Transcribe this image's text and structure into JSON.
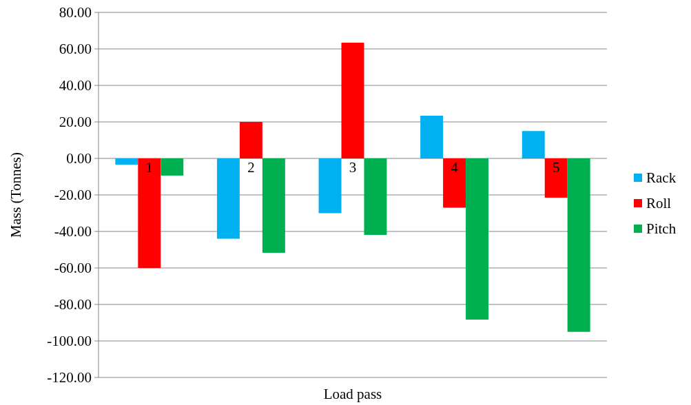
{
  "chart_data": {
    "type": "bar",
    "xlabel": "Load pass",
    "ylabel": "Mass (Tonnes)",
    "categories": [
      "1",
      "2",
      "3",
      "4",
      "5"
    ],
    "series": [
      {
        "name": "Rack",
        "color": "#00b0f0",
        "values": [
          -3.4,
          -44,
          -30,
          23.4,
          15
        ]
      },
      {
        "name": "Roll",
        "color": "#ff0000",
        "values": [
          -60,
          20,
          63.4,
          -27,
          -21.5
        ]
      },
      {
        "name": "Pitch",
        "color": "#00b050",
        "values": [
          -9.4,
          -51.7,
          -41.9,
          -88.3,
          -95
        ]
      }
    ],
    "ylim": [
      -120,
      80
    ],
    "yticks": [
      {
        "value": -120,
        "label": "-120.00"
      },
      {
        "value": -100,
        "label": "-100.00"
      },
      {
        "value": -80,
        "label": "-80.00"
      },
      {
        "value": -60,
        "label": "-60.00"
      },
      {
        "value": -40,
        "label": "-40.00"
      },
      {
        "value": -20,
        "label": "-20.00"
      },
      {
        "value": 0,
        "label": "0.00"
      },
      {
        "value": 20,
        "label": "20.00"
      },
      {
        "value": 40,
        "label": "40.00"
      },
      {
        "value": 60,
        "label": "60.00"
      },
      {
        "value": 80,
        "label": "80.00"
      }
    ],
    "grid": "y",
    "legend": "right"
  }
}
